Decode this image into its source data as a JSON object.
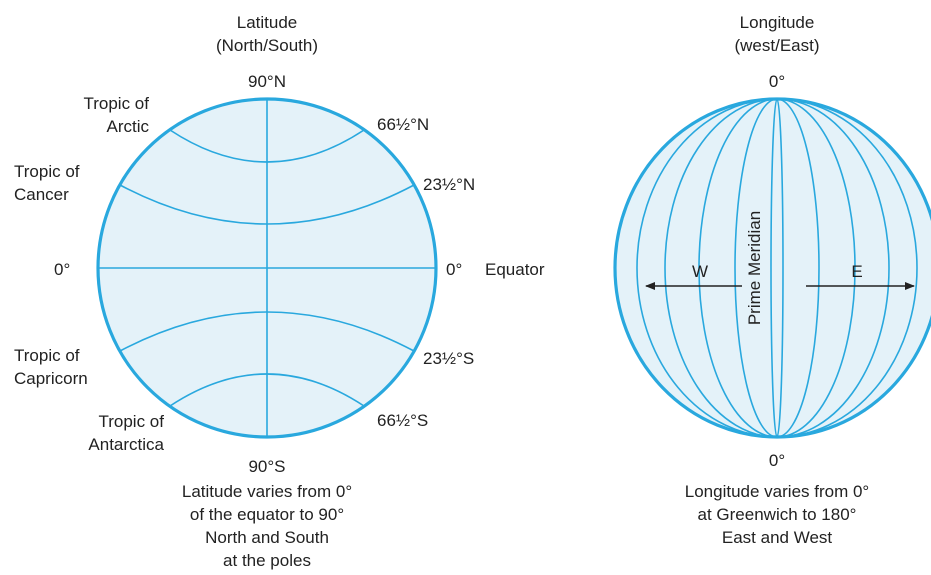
{
  "colors": {
    "line": "#29a8de",
    "fill": "#e4f2f9",
    "text": "#222222",
    "arrow": "#222222"
  },
  "latitude": {
    "title_line1": "Latitude",
    "title_line2": "(North/South)",
    "top_label": "90°N",
    "bottom_label": "90°S",
    "left_zero": "0°",
    "right_zero": "0°",
    "equator": "Equator",
    "arctic_deg": "66½°N",
    "cancer_deg": "23½°N",
    "capricorn_deg": "23½°S",
    "antarctic_deg": "66½°S",
    "tropic_arctic_1": "Tropic of",
    "tropic_arctic_2": "Arctic",
    "tropic_cancer_1": "Tropic of",
    "tropic_cancer_2": "Cancer",
    "tropic_capricorn_1": "Tropic of",
    "tropic_capricorn_2": "Capricorn",
    "tropic_antarctica_1": "Tropic of",
    "tropic_antarctica_2": "Antarctica",
    "caption": [
      "Latitude varies from 0°",
      "of the equator to 90°",
      "North and South",
      "at the poles"
    ]
  },
  "longitude": {
    "title_line1": "Longitude",
    "title_line2": "(west/East)",
    "top_label": "0°",
    "bottom_label": "0°",
    "prime_meridian": "Prime Meridian",
    "west": "W",
    "east": "E",
    "caption": [
      "Longitude varies from 0°",
      "at Greenwich to 180°",
      "East and West"
    ]
  }
}
